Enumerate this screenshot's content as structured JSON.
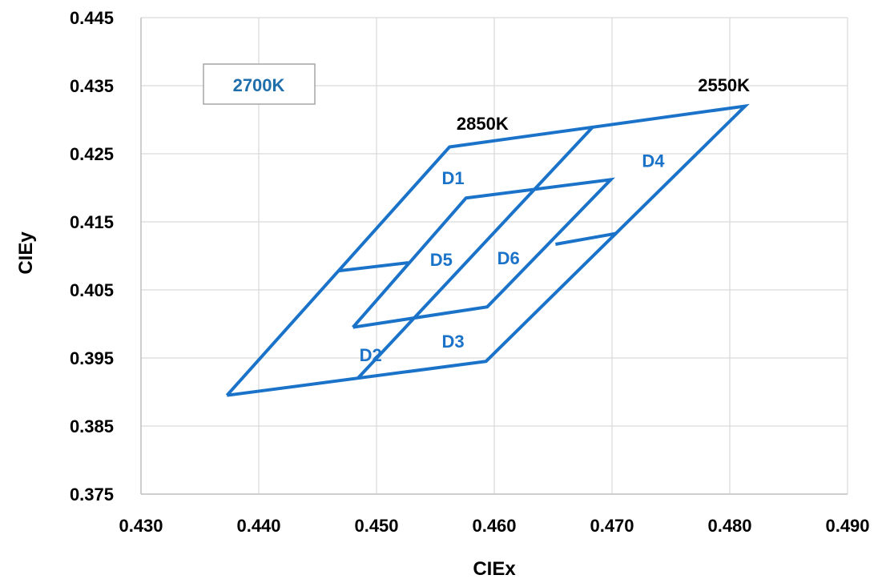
{
  "chart_data": {
    "type": "line",
    "title": "",
    "xlabel": "CIEx",
    "ylabel": "CIEy",
    "xlim": [
      0.43,
      0.49
    ],
    "ylim": [
      0.375,
      0.445
    ],
    "xticks": [
      "0.430",
      "0.440",
      "0.450",
      "0.460",
      "0.470",
      "0.480",
      "0.490"
    ],
    "yticks": [
      "0.445",
      "0.435",
      "0.425",
      "0.415",
      "0.405",
      "0.395",
      "0.385",
      "0.375"
    ],
    "grid": true,
    "line_color": "#1a73c8",
    "box_label": "2700K",
    "cct_labels": [
      {
        "text": "2850K",
        "x": 0.459,
        "y": 0.4295
      },
      {
        "text": "2550K",
        "x": 0.4795,
        "y": 0.4351
      }
    ],
    "series": [
      {
        "values": [
          [
            0.4373,
            0.3895
          ],
          [
            0.4562,
            0.426
          ],
          [
            0.4813,
            0.432
          ],
          [
            0.4593,
            0.3945
          ],
          [
            0.4373,
            0.3895
          ]
        ]
      },
      {
        "values": [
          [
            0.4684,
            0.429
          ],
          [
            0.4484,
            0.392
          ]
        ]
      },
      {
        "values": [
          [
            0.4468,
            0.4078
          ],
          [
            0.4527,
            0.409
          ]
        ]
      },
      {
        "values": [
          [
            0.4652,
            0.4117
          ],
          [
            0.4704,
            0.4133
          ]
        ]
      },
      {
        "values": [
          [
            0.448,
            0.3995
          ],
          [
            0.4576,
            0.4185
          ],
          [
            0.4699,
            0.4212
          ],
          [
            0.4594,
            0.4025
          ],
          [
            0.448,
            0.3995
          ]
        ]
      }
    ],
    "region_labels": [
      {
        "text": "D1",
        "x": 0.4565,
        "y": 0.4215
      },
      {
        "text": "D2",
        "x": 0.4495,
        "y": 0.3955
      },
      {
        "text": "D3",
        "x": 0.4565,
        "y": 0.3975
      },
      {
        "text": "D4",
        "x": 0.4735,
        "y": 0.424
      },
      {
        "text": "D5",
        "x": 0.4555,
        "y": 0.4095
      },
      {
        "text": "D6",
        "x": 0.4612,
        "y": 0.4097
      }
    ]
  }
}
